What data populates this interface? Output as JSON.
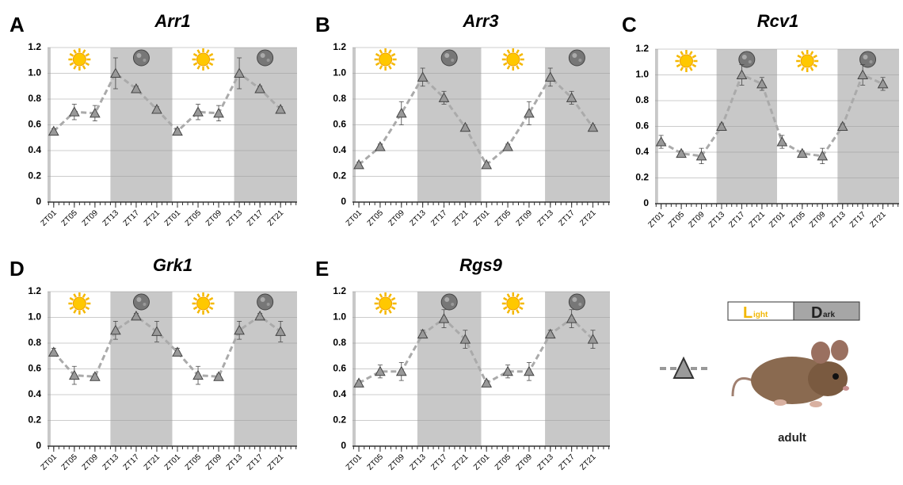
{
  "chart_data": [
    {
      "type": "line",
      "label": "A",
      "title": "Arr1",
      "categories": [
        "ZT01",
        "ZT05",
        "ZT09",
        "ZT13",
        "ZT17",
        "ZT21",
        "ZT01",
        "ZT05",
        "ZT09",
        "ZT13",
        "ZT17",
        "ZT21"
      ],
      "series": [
        {
          "color": "#999999",
          "values": [
            0.55,
            0.7,
            0.69,
            1.0,
            0.88,
            0.72,
            0.55,
            0.7,
            0.69,
            1.0,
            0.88,
            0.72
          ],
          "errors": [
            0.02,
            0.06,
            0.06,
            0.12,
            0.02,
            0.02,
            0.02,
            0.06,
            0.06,
            0.12,
            0.02,
            0.02
          ]
        }
      ],
      "ylim": [
        0,
        1.2
      ],
      "yticks": [
        0,
        0.2,
        0.4,
        0.6,
        {
          "value": 0.8,
          "label": "0.8"
        },
        {
          "value": 1.0,
          "label": "1.0"
        },
        1.2
      ],
      "grid": true
    },
    {
      "type": "line",
      "label": "B",
      "title": "Arr3",
      "categories": [
        "ZT01",
        "ZT05",
        "ZT09",
        "ZT13",
        "ZT17",
        "ZT21",
        "ZT01",
        "ZT05",
        "ZT09",
        "ZT13",
        "ZT17",
        "ZT21"
      ],
      "series": [
        {
          "color": "#999999",
          "values": [
            0.29,
            0.43,
            0.69,
            0.97,
            0.81,
            0.58,
            0.29,
            0.43,
            0.69,
            0.97,
            0.81,
            0.58
          ],
          "errors": [
            0.02,
            0.02,
            0.09,
            0.07,
            0.05,
            0.02,
            0.02,
            0.02,
            0.09,
            0.07,
            0.05,
            0.02
          ]
        }
      ],
      "ylim": [
        0,
        1.2
      ],
      "yticks": [
        0,
        0.2,
        0.4,
        0.6,
        {
          "value": 0.8,
          "label": "0.8"
        },
        {
          "value": 1.0,
          "label": "1.0"
        },
        1.2
      ],
      "grid": true
    },
    {
      "type": "line",
      "label": "C",
      "title": "Rcv1",
      "categories": [
        "ZT01",
        "ZT05",
        "ZT09",
        "ZT13",
        "ZT17",
        "ZT21",
        "ZT01",
        "ZT05",
        "ZT09",
        "ZT13",
        "ZT17",
        "ZT21"
      ],
      "series": [
        {
          "color": "#999999",
          "values": [
            0.48,
            0.39,
            0.37,
            0.6,
            1.0,
            0.93,
            0.48,
            0.39,
            0.37,
            0.6,
            1.0,
            0.93
          ],
          "errors": [
            0.05,
            0.02,
            0.06,
            0.02,
            0.08,
            0.05,
            0.05,
            0.02,
            0.06,
            0.02,
            0.08,
            0.05
          ]
        }
      ],
      "ylim": [
        0,
        1.2
      ],
      "yticks": [
        0,
        0.2,
        0.4,
        0.6,
        {
          "value": 0.8,
          "label": "0.8"
        },
        {
          "value": 1.0,
          "label": "1.0"
        },
        1.2
      ],
      "grid": true
    },
    {
      "type": "line",
      "label": "D",
      "title": "Grk1",
      "categories": [
        "ZT01",
        "ZT05",
        "ZT09",
        "ZT13",
        "ZT17",
        "ZT21",
        "ZT01",
        "ZT05",
        "ZT09",
        "ZT13",
        "ZT17",
        "ZT21"
      ],
      "series": [
        {
          "color": "#999999",
          "values": [
            0.73,
            0.55,
            0.54,
            0.9,
            1.01,
            0.89,
            0.73,
            0.55,
            0.54,
            0.9,
            1.01,
            0.89
          ],
          "errors": [
            0.03,
            0.07,
            0.02,
            0.07,
            0.02,
            0.08,
            0.03,
            0.07,
            0.02,
            0.07,
            0.02,
            0.08
          ]
        }
      ],
      "ylim": [
        0,
        1.2
      ],
      "yticks": [
        0,
        0.2,
        0.4,
        0.6,
        {
          "value": 0.8,
          "label": "0.8"
        },
        {
          "value": 1.0,
          "label": "1.0"
        },
        1.2
      ],
      "grid": true
    },
    {
      "type": "line",
      "label": "E",
      "title": "Rgs9",
      "categories": [
        "ZT01",
        "ZT05",
        "ZT09",
        "ZT13",
        "ZT17",
        "ZT21",
        "ZT01",
        "ZT05",
        "ZT09",
        "ZT13",
        "ZT17",
        "ZT21"
      ],
      "series": [
        {
          "color": "#999999",
          "values": [
            0.49,
            0.58,
            0.58,
            0.87,
            0.99,
            0.83,
            0.49,
            0.58,
            0.58,
            0.87,
            0.99,
            0.83
          ],
          "errors": [
            0.02,
            0.05,
            0.07,
            0.03,
            0.07,
            0.07,
            0.02,
            0.05,
            0.07,
            0.03,
            0.07,
            0.07
          ]
        }
      ],
      "ylim": [
        0,
        1.2
      ],
      "yticks": [
        0,
        0.2,
        0.4,
        0.6,
        {
          "value": 0.8,
          "label": "0.8"
        },
        {
          "value": 1.0,
          "label": "1.0"
        },
        1.2
      ],
      "grid": true
    }
  ],
  "legend": {
    "light_initial": "L",
    "light_rest": "ight",
    "dark_initial": "D",
    "dark_rest": "ark",
    "subject": "adult"
  }
}
